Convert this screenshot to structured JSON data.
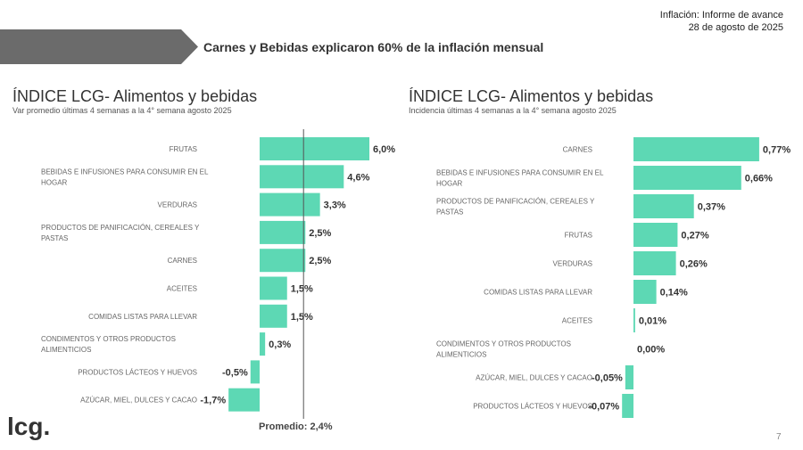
{
  "header": {
    "report": "Inflación: Informe de avance",
    "date": "28 de agosto de 2025",
    "headline": "Carnes y Bebidas explicaron 60% de la inflación mensual"
  },
  "footer": {
    "logo": "lcg.",
    "page": "7"
  },
  "colors": {
    "bar": "#5dd8b4",
    "banner": "#6b6b6b"
  },
  "chart_data": [
    {
      "type": "bar",
      "orientation": "horizontal",
      "title": "ÍNDICE LCG- Alimentos y bebidas",
      "subtitle": "Var promedio últimas 4 semanas a la 4° semana agosto 2025",
      "categories": [
        "FRUTAS",
        "BEBIDAS E INFUSIONES PARA CONSUMIR EN EL HOGAR",
        "VERDURAS",
        "PRODUCTOS DE PANIFICACIÓN, CEREALES Y PASTAS",
        "CARNES",
        "ACEITES",
        "COMIDAS LISTAS PARA LLEVAR",
        "CONDIMENTOS Y OTROS PRODUCTOS ALIMENTICIOS",
        "PRODUCTOS LÁCTEOS Y HUEVOS",
        "AZÚCAR, MIEL, DULCES Y CACAO"
      ],
      "values": [
        6.0,
        4.6,
        3.3,
        2.5,
        2.5,
        1.5,
        1.5,
        0.3,
        -0.5,
        -1.7
      ],
      "labels": [
        "6,0%",
        "4,6%",
        "3,3%",
        "2,5%",
        "2,5%",
        "1,5%",
        "1,5%",
        "0,3%",
        "-0,5%",
        "-1,7%"
      ],
      "reference_line": {
        "value": 2.4,
        "label": "Promedio: 2,4%"
      }
    },
    {
      "type": "bar",
      "orientation": "horizontal",
      "title": "ÍNDICE LCG- Alimentos y bebidas",
      "subtitle": "Incidencia últimas 4 semanas a la 4° semana agosto 2025",
      "categories": [
        "CARNES",
        "BEBIDAS E INFUSIONES PARA CONSUMIR EN EL HOGAR",
        "PRODUCTOS DE PANIFICACIÓN, CEREALES Y PASTAS",
        "FRUTAS",
        "VERDURAS",
        "COMIDAS LISTAS PARA LLEVAR",
        "ACEITES",
        "CONDIMENTOS Y OTROS PRODUCTOS ALIMENTICIOS",
        "AZÚCAR, MIEL, DULCES Y CACAO",
        "PRODUCTOS LÁCTEOS Y HUEVOS"
      ],
      "values": [
        0.77,
        0.66,
        0.37,
        0.27,
        0.26,
        0.14,
        0.01,
        0.0,
        -0.05,
        -0.07
      ],
      "labels": [
        "0,77%",
        "0,66%",
        "0,37%",
        "0,27%",
        "0,26%",
        "0,14%",
        "0,01%",
        "0,00%",
        "-0,05%",
        "-0,07%"
      ]
    }
  ]
}
